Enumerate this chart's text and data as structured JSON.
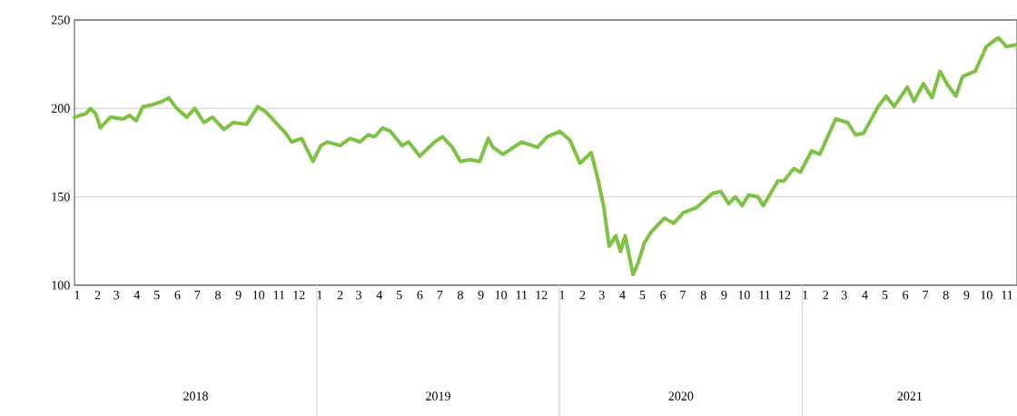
{
  "chart_data": {
    "type": "line",
    "x": [
      "2018-01-01",
      "2018-01-18",
      "2018-01-25",
      "2018-02-02",
      "2018-02-09",
      "2018-02-24",
      "2018-03-15",
      "2018-03-25",
      "2018-04-04",
      "2018-04-14",
      "2018-04-28",
      "2018-05-13",
      "2018-05-23",
      "2018-06-04",
      "2018-06-19",
      "2018-07-01",
      "2018-07-15",
      "2018-07-28",
      "2018-08-14",
      "2018-08-28",
      "2018-09-17",
      "2018-10-04",
      "2018-10-16",
      "2018-10-31",
      "2018-11-15",
      "2018-11-24",
      "2018-12-09",
      "2018-12-26",
      "2019-01-07",
      "2019-01-17",
      "2019-02-05",
      "2019-02-20",
      "2019-03-07",
      "2019-03-19",
      "2019-03-29",
      "2019-04-10",
      "2019-04-22",
      "2019-05-09",
      "2019-05-19",
      "2019-06-05",
      "2019-06-27",
      "2019-07-09",
      "2019-07-24",
      "2019-08-05",
      "2019-08-20",
      "2019-09-03",
      "2019-09-16",
      "2019-09-23",
      "2019-10-08",
      "2019-10-16",
      "2019-11-05",
      "2019-11-29",
      "2019-12-14",
      "2020-01-02",
      "2020-01-17",
      "2020-02-01",
      "2020-02-18",
      "2020-02-28",
      "2020-03-08",
      "2020-03-16",
      "2020-03-26",
      "2020-04-02",
      "2020-04-09",
      "2020-04-21",
      "2020-04-29",
      "2020-05-08",
      "2020-05-18",
      "2020-06-07",
      "2020-06-21",
      "2020-07-06",
      "2020-07-26",
      "2020-08-19",
      "2020-08-31",
      "2020-09-12",
      "2020-09-22",
      "2020-10-02",
      "2020-10-12",
      "2020-10-26",
      "2020-11-03",
      "2020-11-25",
      "2020-12-04",
      "2020-12-19",
      "2020-12-29",
      "2021-01-15",
      "2021-01-27",
      "2021-02-20",
      "2021-03-10",
      "2021-03-22",
      "2021-04-03",
      "2021-04-25",
      "2021-05-07",
      "2021-05-19",
      "2021-06-08",
      "2021-06-18",
      "2021-07-02",
      "2021-07-15",
      "2021-07-27",
      "2021-08-08",
      "2021-08-20",
      "2021-08-30",
      "2021-09-18",
      "2021-10-05",
      "2021-10-23",
      "2021-11-04",
      "2021-11-20"
    ],
    "series": [
      {
        "color": "#7dc242",
        "values": [
          195,
          197,
          200,
          197,
          189,
          195,
          194,
          196,
          193,
          201,
          202,
          204,
          206,
          200,
          195,
          200,
          192,
          195,
          188,
          192,
          191,
          201,
          198,
          192,
          186,
          181,
          183,
          170,
          179,
          181,
          179,
          183,
          181,
          185,
          184,
          189,
          187,
          179,
          181,
          173,
          181,
          184,
          178,
          170,
          171,
          170,
          183,
          178,
          174,
          176,
          181,
          178,
          184,
          187,
          182,
          169,
          175,
          160,
          144,
          122,
          128,
          119,
          128,
          106,
          113,
          124,
          130,
          138,
          135,
          141,
          144,
          152,
          153,
          146,
          150,
          145,
          151,
          150,
          145,
          159,
          159,
          166,
          164,
          176,
          174,
          194,
          192,
          185,
          186,
          201,
          207,
          201,
          212,
          204,
          214,
          206,
          221,
          213,
          207,
          218,
          221,
          235,
          240,
          235,
          236
        ]
      }
    ],
    "xlim": [
      "2018-01-01",
      "2021-11-20"
    ],
    "xticks": [
      {
        "value": "2018-01-05",
        "label": "1"
      },
      {
        "value": "2018-02-05",
        "label": "2"
      },
      {
        "value": "2018-03-05",
        "label": "3"
      },
      {
        "value": "2018-04-05",
        "label": "4"
      },
      {
        "value": "2018-05-05",
        "label": "5"
      },
      {
        "value": "2018-06-05",
        "label": "6"
      },
      {
        "value": "2018-07-05",
        "label": "7"
      },
      {
        "value": "2018-08-05",
        "label": "8"
      },
      {
        "value": "2018-09-05",
        "label": "9"
      },
      {
        "value": "2018-10-05",
        "label": "10"
      },
      {
        "value": "2018-11-05",
        "label": "11"
      },
      {
        "value": "2018-12-05",
        "label": "12"
      },
      {
        "value": "2019-01-05",
        "label": "1"
      },
      {
        "value": "2019-02-05",
        "label": "2"
      },
      {
        "value": "2019-03-05",
        "label": "3"
      },
      {
        "value": "2019-04-05",
        "label": "4"
      },
      {
        "value": "2019-05-05",
        "label": "5"
      },
      {
        "value": "2019-06-05",
        "label": "6"
      },
      {
        "value": "2019-07-05",
        "label": "7"
      },
      {
        "value": "2019-08-05",
        "label": "8"
      },
      {
        "value": "2019-09-05",
        "label": "9"
      },
      {
        "value": "2019-10-05",
        "label": "10"
      },
      {
        "value": "2019-11-05",
        "label": "11"
      },
      {
        "value": "2019-12-05",
        "label": "12"
      },
      {
        "value": "2020-01-05",
        "label": "1"
      },
      {
        "value": "2020-02-05",
        "label": "2"
      },
      {
        "value": "2020-03-05",
        "label": "3"
      },
      {
        "value": "2020-04-05",
        "label": "4"
      },
      {
        "value": "2020-05-05",
        "label": "5"
      },
      {
        "value": "2020-06-05",
        "label": "6"
      },
      {
        "value": "2020-07-05",
        "label": "7"
      },
      {
        "value": "2020-08-05",
        "label": "8"
      },
      {
        "value": "2020-09-05",
        "label": "9"
      },
      {
        "value": "2020-10-05",
        "label": "10"
      },
      {
        "value": "2020-11-05",
        "label": "11"
      },
      {
        "value": "2020-12-05",
        "label": "12"
      },
      {
        "value": "2021-01-05",
        "label": "1"
      },
      {
        "value": "2021-02-05",
        "label": "2"
      },
      {
        "value": "2021-03-05",
        "label": "3"
      },
      {
        "value": "2021-04-05",
        "label": "4"
      },
      {
        "value": "2021-05-05",
        "label": "5"
      },
      {
        "value": "2021-06-05",
        "label": "6"
      },
      {
        "value": "2021-07-05",
        "label": "7"
      },
      {
        "value": "2021-08-05",
        "label": "8"
      },
      {
        "value": "2021-09-05",
        "label": "9"
      },
      {
        "value": "2021-10-05",
        "label": "10"
      },
      {
        "value": "2021-11-05",
        "label": "11"
      }
    ],
    "ylim": [
      100,
      250
    ],
    "yticks": [
      100,
      150,
      200,
      250
    ],
    "grid": "y",
    "annotations": [
      "2018",
      "2019",
      "2020",
      "2021"
    ]
  }
}
